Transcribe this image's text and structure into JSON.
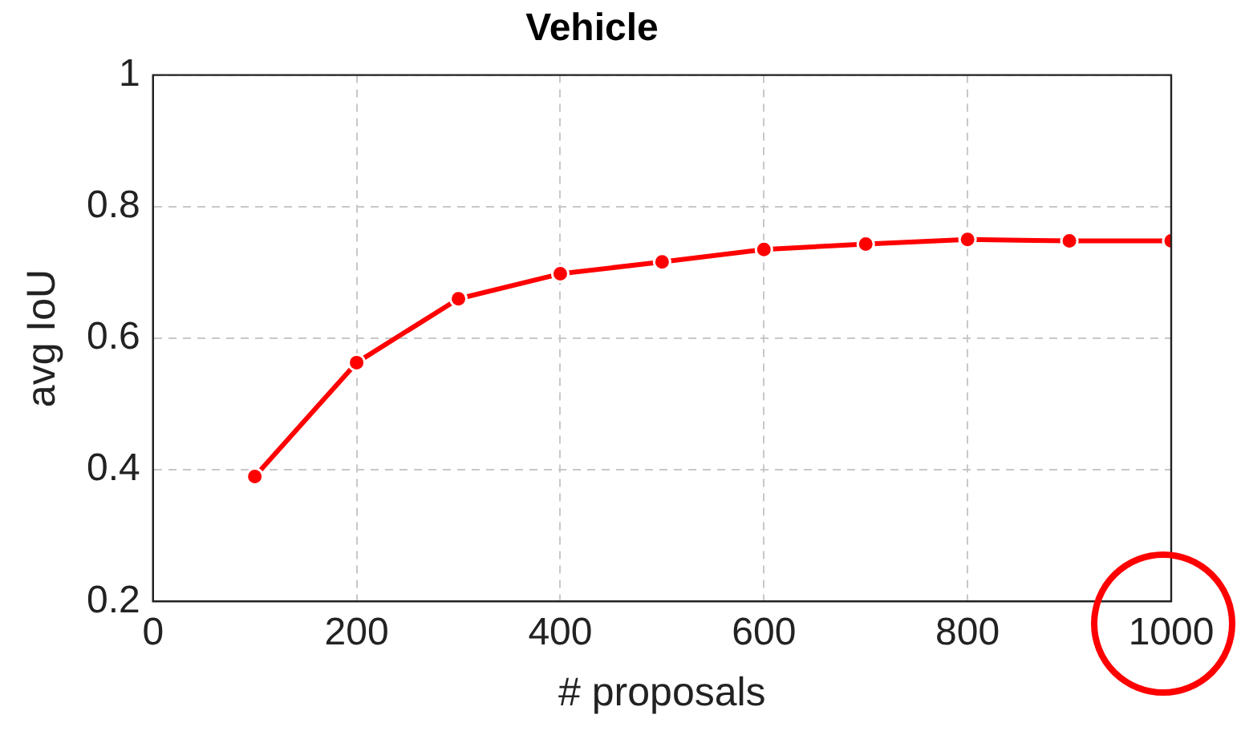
{
  "chart_data": {
    "type": "line",
    "title": "Vehicle",
    "xlabel": "# proposals",
    "ylabel": "avg IoU",
    "x": [
      100,
      200,
      300,
      400,
      500,
      600,
      700,
      800,
      900,
      1000
    ],
    "series": [
      {
        "color": "#ff0000",
        "values": [
          0.39,
          0.563,
          0.66,
          0.698,
          0.716,
          0.735,
          0.743,
          0.75,
          0.748,
          0.748
        ]
      }
    ],
    "xlim": [
      0,
      1000
    ],
    "xticks": [
      0,
      200,
      400,
      600,
      800,
      1000
    ],
    "ylim": [
      0.2,
      1
    ],
    "yticks": [
      0.2,
      0.4,
      0.6,
      0.8,
      1
    ],
    "grid": true,
    "legend": false,
    "marker": "circle",
    "line_style": "solid"
  }
}
